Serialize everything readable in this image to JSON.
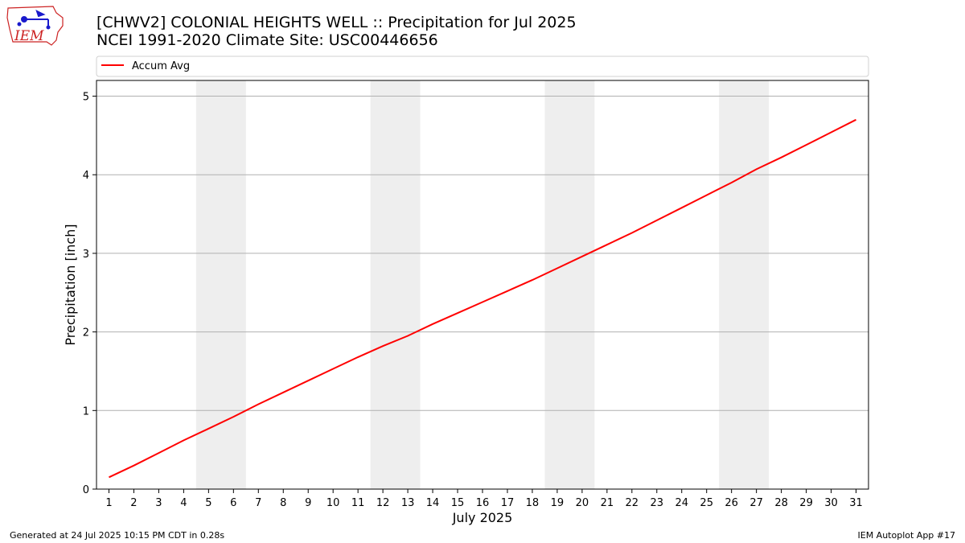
{
  "header": {
    "title_line1": "[CHWV2] COLONIAL HEIGHTS WELL :: Precipitation for Jul 2025",
    "title_line2": "NCEI 1991-2020 Climate Site: USC00446656"
  },
  "logo": {
    "text": "IEM",
    "icon": "iem-iowa-logo",
    "color": "#cc2222"
  },
  "footer": {
    "left": "Generated at 24 Jul 2025 10:15 PM CDT in 0.28s",
    "right": "IEM Autoplot App #17"
  },
  "chart_data": {
    "type": "line",
    "xlabel": "July 2025",
    "ylabel": "Precipitation [inch]",
    "xlim": [
      0.5,
      31.5
    ],
    "ylim": [
      0,
      5.2
    ],
    "x_ticks": [
      1,
      2,
      3,
      4,
      5,
      6,
      7,
      8,
      9,
      10,
      11,
      12,
      13,
      14,
      15,
      16,
      17,
      18,
      19,
      20,
      21,
      22,
      23,
      24,
      25,
      26,
      27,
      28,
      29,
      30,
      31
    ],
    "y_ticks": [
      0,
      1,
      2,
      3,
      4,
      5
    ],
    "grid": "horizontal",
    "legend_position": "top",
    "weekend_shading": [
      [
        4.5,
        6.5
      ],
      [
        11.5,
        13.5
      ],
      [
        18.5,
        20.5
      ],
      [
        25.5,
        27.5
      ]
    ],
    "shade_color": "#eeeeee",
    "series": [
      {
        "name": "Accum Avg",
        "color": "#ff0000",
        "x": [
          1,
          2,
          3,
          4,
          5,
          6,
          7,
          8,
          9,
          10,
          11,
          12,
          13,
          14,
          15,
          16,
          17,
          18,
          19,
          20,
          21,
          22,
          23,
          24,
          25,
          26,
          27,
          28,
          29,
          30,
          31
        ],
        "values": [
          0.15,
          0.3,
          0.46,
          0.62,
          0.77,
          0.92,
          1.08,
          1.23,
          1.38,
          1.53,
          1.68,
          1.82,
          1.95,
          2.1,
          2.24,
          2.38,
          2.52,
          2.66,
          2.81,
          2.96,
          3.11,
          3.26,
          3.42,
          3.58,
          3.74,
          3.9,
          4.07,
          4.22,
          4.38,
          4.54,
          4.7
        ]
      }
    ]
  }
}
